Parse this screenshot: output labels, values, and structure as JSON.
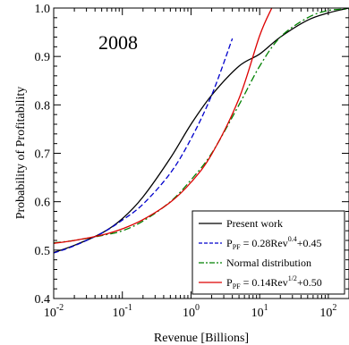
{
  "chart_data": {
    "type": "line",
    "annotation": "2008",
    "xlabel": "Revenue [Billions]",
    "ylabel": "Probability of Profitability",
    "x_scale": "log",
    "xlim": [
      0.01,
      200
    ],
    "ylim": [
      0.4,
      1.0
    ],
    "x_ticks": [
      {
        "value": 0.01,
        "base": "10",
        "exp": "-2"
      },
      {
        "value": 0.1,
        "base": "10",
        "exp": "-1"
      },
      {
        "value": 1,
        "base": "10",
        "exp": "0"
      },
      {
        "value": 10,
        "base": "10",
        "exp": "1"
      },
      {
        "value": 100,
        "base": "10",
        "exp": "2"
      }
    ],
    "y_ticks": [
      "0.4",
      "0.5",
      "0.6",
      "0.7",
      "0.8",
      "0.9",
      "1.0"
    ],
    "legend_position": "bottom-right",
    "series": [
      {
        "name": "Present work",
        "color": "#000000",
        "style": "solid",
        "x": [
          0.01,
          0.02,
          0.05,
          0.1,
          0.2,
          0.5,
          1,
          2,
          5,
          10,
          20,
          50,
          100,
          200
        ],
        "y": [
          0.495,
          0.51,
          0.535,
          0.565,
          0.61,
          0.69,
          0.76,
          0.82,
          0.88,
          0.905,
          0.94,
          0.975,
          0.99,
          1.0
        ]
      },
      {
        "name": "P_PF = 0.28Rev^0.4+0.45",
        "label_parts": {
          "p": "P",
          "sub": "PF",
          "mid": " = 0.28Rev",
          "sup": "0.4",
          "tail": "+0.45"
        },
        "color": "#0000cc",
        "style": "dashed",
        "x": [
          0.01,
          0.02,
          0.05,
          0.1,
          0.2,
          0.5,
          1,
          2,
          4
        ],
        "y": [
          0.494,
          0.509,
          0.535,
          0.562,
          0.595,
          0.659,
          0.73,
          0.82,
          0.937
        ]
      },
      {
        "name": "Normal distribution",
        "color": "#008000",
        "style": "dashdot",
        "x": [
          0.01,
          0.02,
          0.05,
          0.1,
          0.2,
          0.5,
          1,
          2,
          5,
          10,
          20,
          50,
          100,
          200
        ],
        "y": [
          0.515,
          0.52,
          0.53,
          0.54,
          0.56,
          0.6,
          0.645,
          0.7,
          0.8,
          0.88,
          0.94,
          0.98,
          0.995,
          0.998
        ]
      },
      {
        "name": "P_PF = 0.14Rev^1/2+0.50",
        "label_parts": {
          "p": "P",
          "sub": "PF",
          "mid": " = 0.14Rev",
          "sup": "1/2",
          "tail": "+0.50"
        },
        "color": "#dd0000",
        "style": "solid",
        "x": [
          0.01,
          0.02,
          0.05,
          0.1,
          0.2,
          0.5,
          1,
          2,
          5,
          10,
          15
        ],
        "y": [
          0.514,
          0.52,
          0.531,
          0.544,
          0.563,
          0.599,
          0.64,
          0.698,
          0.813,
          0.943,
          1.0
        ]
      }
    ]
  }
}
